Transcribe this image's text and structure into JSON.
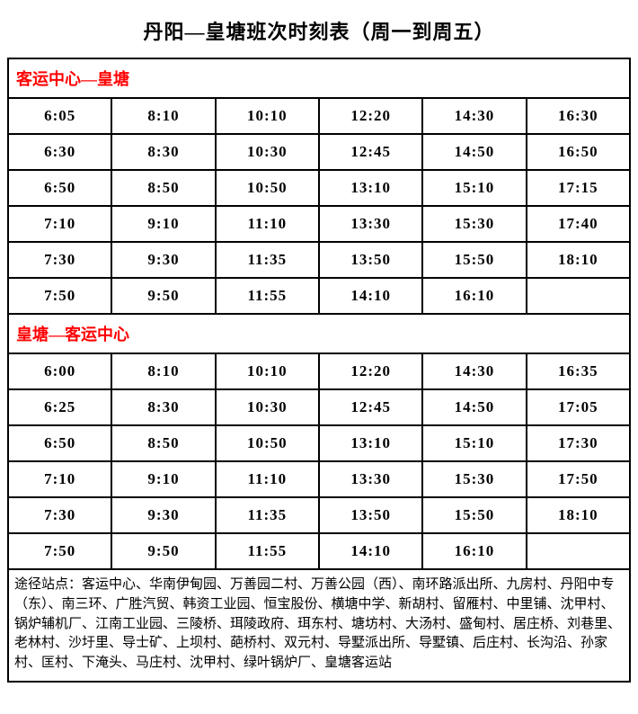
{
  "title": "丹阳—皇塘班次时刻表（周一到周五）",
  "section1": {
    "header": "客运中心—皇塘",
    "rows": [
      [
        "6:05",
        "8:10",
        "10:10",
        "12:20",
        "14:30",
        "16:30"
      ],
      [
        "6:30",
        "8:30",
        "10:30",
        "12:45",
        "14:50",
        "16:50"
      ],
      [
        "6:50",
        "8:50",
        "10:50",
        "13:10",
        "15:10",
        "17:15"
      ],
      [
        "7:10",
        "9:10",
        "11:10",
        "13:30",
        "15:30",
        "17:40"
      ],
      [
        "7:30",
        "9:30",
        "11:35",
        "13:50",
        "15:50",
        "18:10"
      ],
      [
        "7:50",
        "9:50",
        "11:55",
        "14:10",
        "16:10",
        ""
      ]
    ]
  },
  "section2": {
    "header": "皇塘—客运中心",
    "rows": [
      [
        "6:00",
        "8:10",
        "10:10",
        "12:20",
        "14:30",
        "16:35"
      ],
      [
        "6:25",
        "8:30",
        "10:30",
        "12:45",
        "14:50",
        "17:05"
      ],
      [
        "6:50",
        "8:50",
        "10:50",
        "13:10",
        "15:10",
        "17:30"
      ],
      [
        "7:10",
        "9:10",
        "11:10",
        "13:30",
        "15:30",
        "17:50"
      ],
      [
        "7:30",
        "9:30",
        "11:35",
        "13:50",
        "15:50",
        "18:10"
      ],
      [
        "7:50",
        "9:50",
        "11:55",
        "14:10",
        "16:10",
        ""
      ]
    ]
  },
  "footer": "途径站点：客运中心、华南伊甸园、万善园二村、万善公园（西）、南环路派出所、九房村、丹阳中专（东）、南三环、广胜汽贸、韩资工业园、恒宝股份、横塘中学、新胡村、留雁村、中里铺、沈甲村、锅炉辅机厂、江南工业园、三陵桥、珥陵政府、珥东村、塘坊村、大汤村、盛甸村、居庄桥、刘巷里、老林村、沙圩里、导士矿、上坝村、葩桥村、双元村、导墅派出所、导墅镇、后庄村、长沟沿、孙家村、匡村、下淹头、马庄村、沈甲村、绿叶锅炉厂、皇塘客运站"
}
